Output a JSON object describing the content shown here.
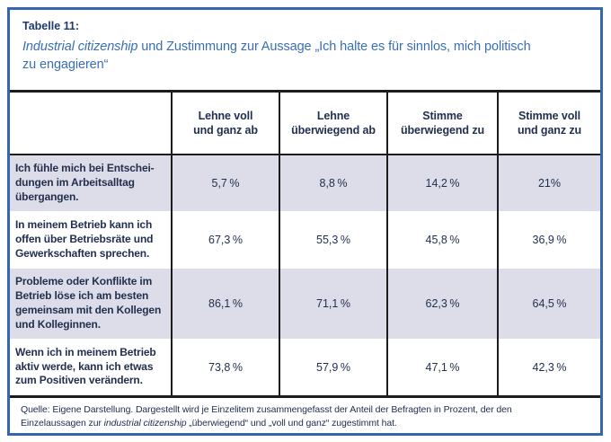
{
  "colors": {
    "frame_blue": "#3766b0",
    "title_navy": "#1d3a6d",
    "subtitle_blue": "#3a6eb5",
    "table_text": "#22304f",
    "row_shade": "#dcdde8",
    "rule_black": "#1c1c1c",
    "background": "#ffffff"
  },
  "title": {
    "label": "Tabelle 11:",
    "subtitle_italic": "Industrial citizenship",
    "subtitle_rest": " und Zustimmung zur Aussage „Ich halte es für sinnlos, mich politisch\nzu engagieren“"
  },
  "table": {
    "columns": [
      [
        "Lehne voll",
        "und ganz ab"
      ],
      [
        "Lehne",
        "überwiegend ab"
      ],
      [
        "Stimme",
        "überwiegend zu"
      ],
      [
        "Stimme voll",
        "und ganz zu"
      ]
    ],
    "rows": [
      {
        "label": [
          "Ich fühle mich bei Entschei-",
          "dungen im Arbeitsalltag",
          "übergangen."
        ],
        "values": [
          "5,7 %",
          "8,8 %",
          "14,2 %",
          "21%"
        ],
        "shaded": true
      },
      {
        "label": [
          "In meinem Betrieb kann ich",
          "offen über Betriebsräte und",
          "Gewerkschaften sprechen."
        ],
        "values": [
          "67,3 %",
          "55,3 %",
          "45,8 %",
          "36,9 %"
        ],
        "shaded": false
      },
      {
        "label": [
          "Probleme oder Konflikte im",
          "Betrieb löse ich am besten",
          "gemeinsam mit den Kollegen",
          "und Kolleginnen."
        ],
        "values": [
          "86,1 %",
          "71,1 %",
          "62,3 %",
          "64,5 %"
        ],
        "shaded": true
      },
      {
        "label": [
          "Wenn ich in meinem Betrieb",
          "aktiv werde, kann ich etwas",
          "zum Positiven verändern."
        ],
        "values": [
          "73,8 %",
          "57,9 %",
          "47,1 %",
          "42,3 %"
        ],
        "shaded": false
      }
    ]
  },
  "footer": {
    "part1": "Quelle: Eigene Darstellung. Dargestellt wird je Einzelitem zusammengefasst der Anteil der Befragten in Prozent, der den\nEinzelaussagen zur ",
    "italic": "industrial citizenship",
    "part2": " „überwiegend“ und „voll und ganz“ zugestimmt hat."
  }
}
